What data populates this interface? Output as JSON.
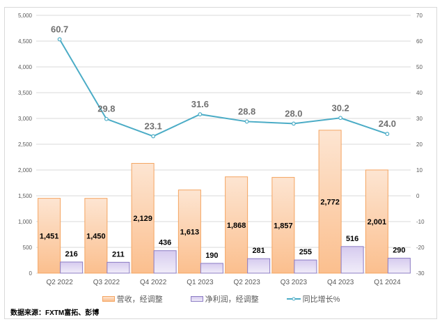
{
  "chart_data": {
    "type": "bar+line",
    "categories": [
      "Q2 2022",
      "Q3 2022",
      "Q4 2022",
      "Q1 2023",
      "Q2 2023",
      "Q3 2023",
      "Q4 2023",
      "Q1 2024"
    ],
    "series": [
      {
        "name": "营收，经调整",
        "type": "bar",
        "axis": "left",
        "color": "#f8b988",
        "values": [
          1451,
          1450,
          2129,
          1613,
          1868,
          1857,
          2772,
          2001
        ],
        "labels": [
          "1,451",
          "1,450",
          "2,129",
          "1,613",
          "1,868",
          "1,857",
          "2,772",
          "2,001"
        ]
      },
      {
        "name": "净利润，经调整",
        "type": "bar",
        "axis": "left",
        "color": "#b4a2e0",
        "values": [
          216,
          211,
          436,
          190,
          281,
          255,
          516,
          290
        ],
        "labels": [
          "216",
          "211",
          "436",
          "190",
          "281",
          "255",
          "516",
          "290"
        ]
      },
      {
        "name": "同比增长%",
        "type": "line",
        "axis": "right",
        "color": "#4bacc6",
        "values": [
          60.7,
          29.8,
          23.1,
          31.6,
          28.8,
          28.0,
          30.2,
          24.0
        ],
        "labels": [
          "60.7",
          "29.8",
          "23.1",
          "31.6",
          "28.8",
          "28.0",
          "30.2",
          "24.0"
        ]
      }
    ],
    "y_left": {
      "lim": [
        0,
        5000
      ],
      "ticks": [
        "0",
        "500",
        "1,000",
        "1,500",
        "2,000",
        "2,500",
        "3,000",
        "3,500",
        "4,000",
        "4,500",
        "5,000"
      ]
    },
    "y_right": {
      "lim": [
        -30,
        70
      ],
      "ticks": [
        "-30",
        "-20",
        "-10",
        "0",
        "10",
        "20",
        "30",
        "40",
        "50",
        "60",
        "70"
      ]
    },
    "grid": true,
    "legend_position": "bottom"
  },
  "source": "数据来源：FXTM富拓、彭博"
}
